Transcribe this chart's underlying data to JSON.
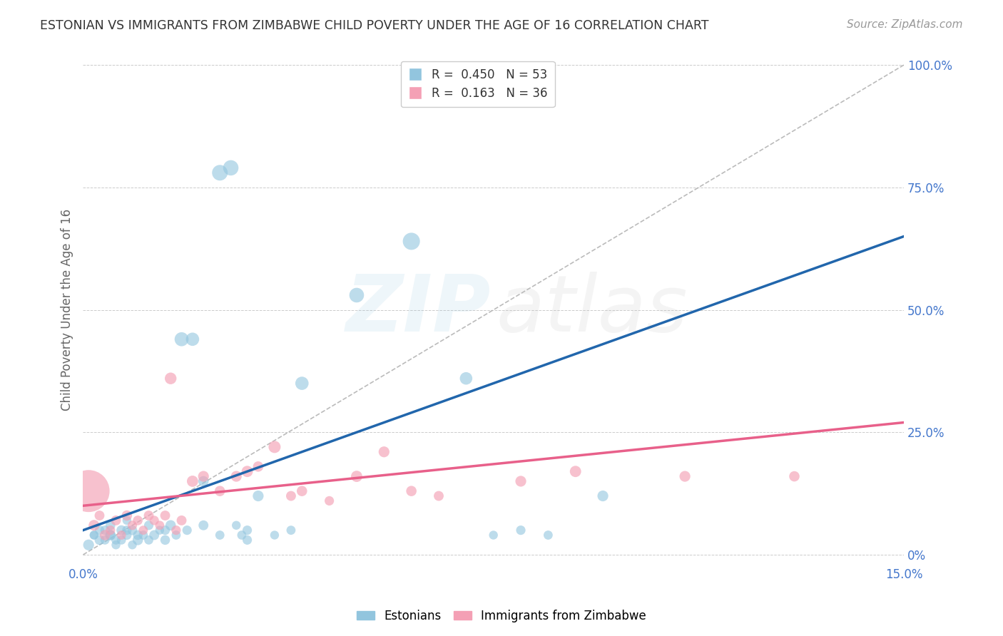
{
  "title": "ESTONIAN VS IMMIGRANTS FROM ZIMBABWE CHILD POVERTY UNDER THE AGE OF 16 CORRELATION CHART",
  "source": "Source: ZipAtlas.com",
  "ylabel_label": "Child Poverty Under the Age of 16",
  "legend_r_blue": "R =  0.450",
  "legend_n_blue": "N = 53",
  "legend_r_pink": "R =  0.163",
  "legend_n_pink": "N = 36",
  "blue_color": "#92c5de",
  "pink_color": "#f4a0b5",
  "blue_line_color": "#2166ac",
  "pink_line_color": "#e8608a",
  "ref_line_color": "#aaaaaa",
  "grid_color": "#cccccc",
  "background_color": "#ffffff",
  "tick_color": "#4477cc",
  "axis_label_color": "#666666",
  "title_color": "#333333",
  "source_color": "#999999",
  "watermark_zip_color": "#92c5de",
  "watermark_atlas_color": "#bbbbbb",
  "xlim": [
    0,
    0.15
  ],
  "ylim": [
    -0.02,
    1.02
  ],
  "plot_ylim": [
    0,
    1.0
  ],
  "yticks": [
    0.0,
    0.25,
    0.5,
    0.75,
    1.0
  ],
  "ytick_labels_right": [
    "0%",
    "25.0%",
    "50.0%",
    "75.0%",
    "100.0%"
  ],
  "xticks": [
    0.0,
    0.15
  ],
  "xtick_labels": [
    "0.0%",
    "15.0%"
  ],
  "blue_trend_x0": 0.0,
  "blue_trend_y0": 0.05,
  "blue_trend_x1": 0.15,
  "blue_trend_y1": 0.65,
  "pink_trend_x0": 0.0,
  "pink_trend_y0": 0.1,
  "pink_trend_x1": 0.15,
  "pink_trend_y1": 0.27,
  "blue_x": [
    0.001,
    0.002,
    0.003,
    0.004,
    0.005,
    0.005,
    0.006,
    0.007,
    0.008,
    0.008,
    0.009,
    0.01,
    0.011,
    0.012,
    0.013,
    0.014,
    0.015,
    0.016,
    0.017,
    0.018,
    0.019,
    0.02,
    0.022,
    0.025,
    0.027,
    0.028,
    0.029,
    0.03,
    0.032,
    0.035,
    0.038,
    0.04,
    0.05,
    0.06,
    0.07,
    0.075,
    0.08,
    0.085,
    0.095,
    0.002,
    0.003,
    0.004,
    0.005,
    0.006,
    0.007,
    0.008,
    0.009,
    0.01,
    0.012,
    0.015,
    0.022,
    0.025,
    0.03
  ],
  "blue_y": [
    0.02,
    0.04,
    0.03,
    0.05,
    0.04,
    0.06,
    0.03,
    0.05,
    0.04,
    0.07,
    0.05,
    0.03,
    0.04,
    0.06,
    0.04,
    0.05,
    0.03,
    0.06,
    0.04,
    0.44,
    0.05,
    0.44,
    0.06,
    0.78,
    0.79,
    0.06,
    0.04,
    0.05,
    0.12,
    0.04,
    0.05,
    0.35,
    0.53,
    0.64,
    0.36,
    0.04,
    0.05,
    0.04,
    0.12,
    0.04,
    0.05,
    0.03,
    0.04,
    0.02,
    0.03,
    0.05,
    0.02,
    0.04,
    0.03,
    0.05,
    0.15,
    0.04,
    0.03
  ],
  "blue_s": [
    120,
    80,
    100,
    90,
    110,
    95,
    85,
    100,
    90,
    80,
    95,
    110,
    85,
    90,
    100,
    80,
    95,
    110,
    85,
    200,
    90,
    180,
    100,
    250,
    240,
    80,
    85,
    90,
    120,
    80,
    85,
    180,
    220,
    300,
    160,
    80,
    90,
    85,
    120,
    80,
    90,
    85,
    100,
    80,
    85,
    90,
    80,
    95,
    85,
    90,
    110,
    85,
    90
  ],
  "pink_x": [
    0.001,
    0.002,
    0.003,
    0.004,
    0.005,
    0.006,
    0.007,
    0.008,
    0.009,
    0.01,
    0.011,
    0.012,
    0.013,
    0.014,
    0.015,
    0.016,
    0.017,
    0.018,
    0.02,
    0.022,
    0.025,
    0.028,
    0.03,
    0.032,
    0.035,
    0.038,
    0.04,
    0.045,
    0.05,
    0.055,
    0.06,
    0.065,
    0.08,
    0.09,
    0.11,
    0.13
  ],
  "pink_y": [
    0.13,
    0.06,
    0.08,
    0.04,
    0.05,
    0.07,
    0.04,
    0.08,
    0.06,
    0.07,
    0.05,
    0.08,
    0.07,
    0.06,
    0.08,
    0.36,
    0.05,
    0.07,
    0.15,
    0.16,
    0.13,
    0.16,
    0.17,
    0.18,
    0.22,
    0.12,
    0.13,
    0.11,
    0.16,
    0.21,
    0.13,
    0.12,
    0.15,
    0.17,
    0.16,
    0.16
  ],
  "pink_s": [
    1800,
    120,
    100,
    110,
    90,
    100,
    85,
    110,
    90,
    95,
    85,
    100,
    90,
    85,
    100,
    140,
    90,
    100,
    130,
    120,
    110,
    120,
    130,
    110,
    150,
    100,
    110,
    90,
    130,
    120,
    110,
    100,
    120,
    130,
    120,
    110
  ]
}
